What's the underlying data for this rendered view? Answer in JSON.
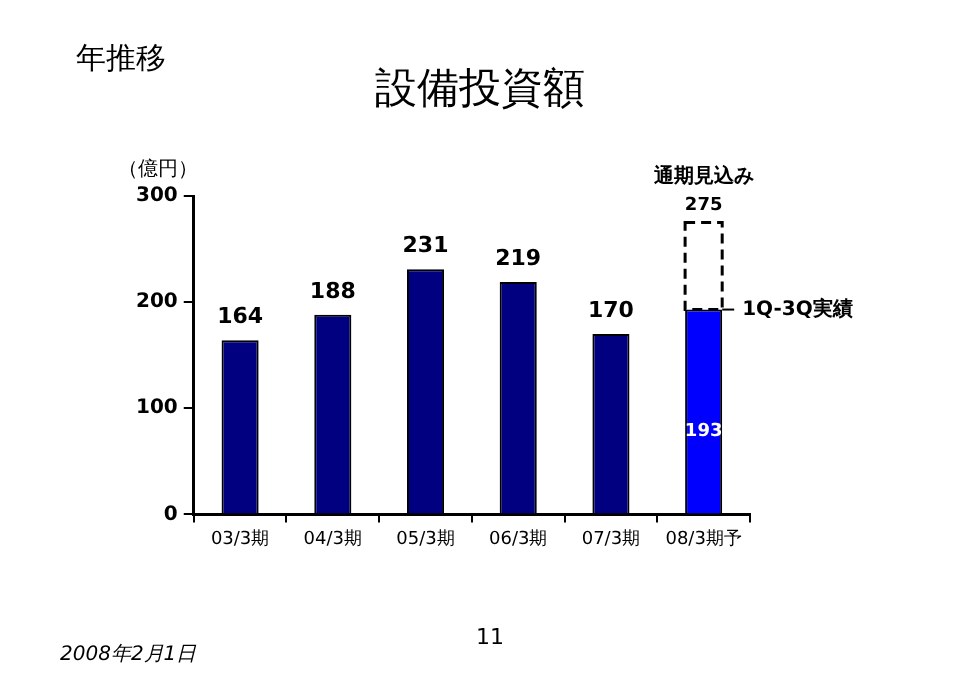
{
  "chart_data": {
    "type": "bar",
    "title": "設備投資額",
    "subtitle": "年推移",
    "ylabel": "（億円）",
    "categories": [
      "03/3期",
      "04/3期",
      "05/3期",
      "06/3期",
      "07/3期",
      "08/3期予"
    ],
    "stacked": true,
    "series": [
      {
        "colors": [
          "#000080",
          "#000080",
          "#000080",
          "#000080",
          "#000080",
          "#0000ff"
        ],
        "values": [
          164,
          188,
          231,
          219,
          170,
          193
        ],
        "value_labels": [
          "164",
          "188",
          "231",
          "219",
          "170",
          "193"
        ]
      },
      {
        "color": "#ffffff",
        "line_style": "dashed",
        "values": [
          null,
          null,
          null,
          null,
          null,
          82
        ]
      }
    ],
    "totals": [
      null,
      null,
      null,
      null,
      null,
      "275"
    ],
    "ylim": [
      0,
      300
    ],
    "yticks": [
      0,
      100,
      200,
      300
    ],
    "grid": false,
    "legend": false,
    "annotations": [
      {
        "text": "通期見込み",
        "x": "08/3期予",
        "y": 275
      },
      {
        "text": "1Q-3Q実績",
        "x": "08/3期予",
        "y": 193
      },
      "2008年2月1日",
      "11"
    ]
  }
}
